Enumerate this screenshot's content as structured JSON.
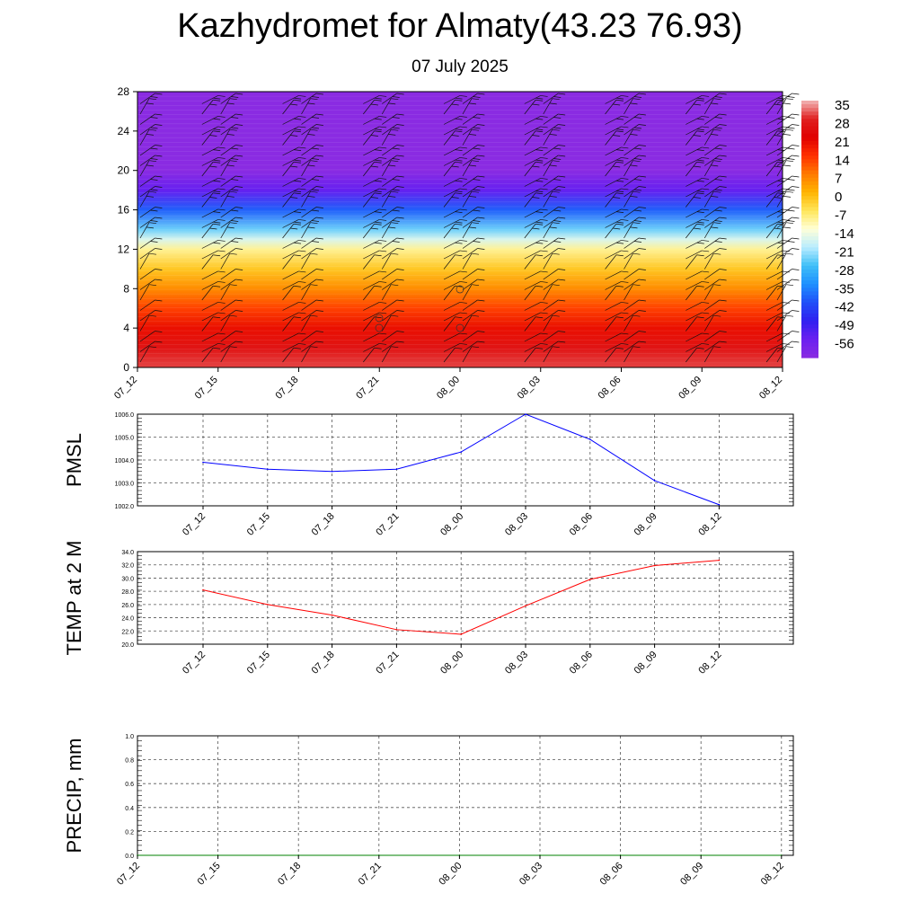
{
  "title": "Kazhydromet for Almaty(43.23 76.93)",
  "subtitle": "07 July 2025",
  "colorbar": {
    "labels": [
      "35",
      "28",
      "21",
      "14",
      "7",
      "0",
      "-7",
      "-14",
      "-21",
      "-28",
      "-35",
      "-42",
      "-49",
      "-56"
    ],
    "stops": [
      "#f2b7b7",
      "#e02020",
      "#e00000",
      "#ff3000",
      "#ff7a00",
      "#ffb400",
      "#ffe65a",
      "#ffffd8",
      "#b9ecff",
      "#3fbff7",
      "#1e90ff",
      "#2050f8",
      "#3020f0",
      "#6a20f0",
      "#8a2be2"
    ]
  },
  "chart_data": [
    {
      "type": "heatmap",
      "description_of_data": "temperature cross-section with wind barbs",
      "x_categories": [
        "07_12",
        "07_15",
        "07_18",
        "07_21",
        "08_00",
        "08_03",
        "08_06",
        "08_09",
        "08_12"
      ],
      "yticks": [
        0,
        4,
        8,
        12,
        16,
        20,
        24,
        28
      ],
      "ylim": [
        0,
        28
      ],
      "colorbar_range": [
        -56,
        35
      ],
      "temperature_by_level": [
        {
          "y": 0,
          "t": 30
        },
        {
          "y": 2,
          "t": 26
        },
        {
          "y": 4,
          "t": 20
        },
        {
          "y": 6,
          "t": 14
        },
        {
          "y": 8,
          "t": 7
        },
        {
          "y": 10,
          "t": 0
        },
        {
          "y": 12,
          "t": -7
        },
        {
          "y": 13,
          "t": -14
        },
        {
          "y": 14,
          "t": -21
        },
        {
          "y": 16,
          "t": -35
        },
        {
          "y": 18,
          "t": -49
        },
        {
          "y": 20,
          "t": -60
        },
        {
          "y": 21,
          "t": -66
        },
        {
          "y": 22,
          "t": -62
        },
        {
          "y": 24,
          "t": -58
        },
        {
          "y": 28,
          "t": -56
        }
      ]
    },
    {
      "type": "line",
      "ylabel": "PMSL",
      "x": [
        "07_12",
        "07_15",
        "07_18",
        "07_21",
        "08_00",
        "08_03",
        "08_06",
        "08_09",
        "08_12"
      ],
      "values": [
        1003.9,
        1003.6,
        1003.5,
        1003.6,
        1004.35,
        1006.0,
        1004.9,
        1003.1,
        1002.05
      ],
      "ylim": [
        1002.0,
        1006.0
      ],
      "yticks": [
        "1002.0",
        "1003.0",
        "1004.0",
        "1005.0",
        "1006.0"
      ],
      "color": "#0000ff"
    },
    {
      "type": "line",
      "ylabel": "TEMP at 2 M",
      "x": [
        "07_12",
        "07_15",
        "07_18",
        "07_21",
        "08_00",
        "08_03",
        "08_06",
        "08_09",
        "08_12"
      ],
      "values": [
        28.2,
        26.0,
        24.4,
        22.2,
        21.5,
        25.8,
        29.8,
        31.9,
        32.7
      ],
      "ylim": [
        20.0,
        34.0
      ],
      "yticks": [
        "20.0",
        "22.0",
        "24.0",
        "26.0",
        "28.0",
        "30.0",
        "32.0",
        "34.0"
      ],
      "color": "#ff0000"
    },
    {
      "type": "line",
      "ylabel": "PRECIP, mm",
      "x": [
        "07_12",
        "07_15",
        "07_18",
        "07_21",
        "08_00",
        "08_03",
        "08_06",
        "08_09",
        "08_12"
      ],
      "values": [
        0,
        0,
        0,
        0,
        0,
        0,
        0,
        0,
        0
      ],
      "ylim": [
        0.0,
        1.0
      ],
      "yticks": [
        "0.0",
        "0.2",
        "0.4",
        "0.6",
        "0.8",
        "1.0"
      ],
      "color": "#008000"
    }
  ]
}
